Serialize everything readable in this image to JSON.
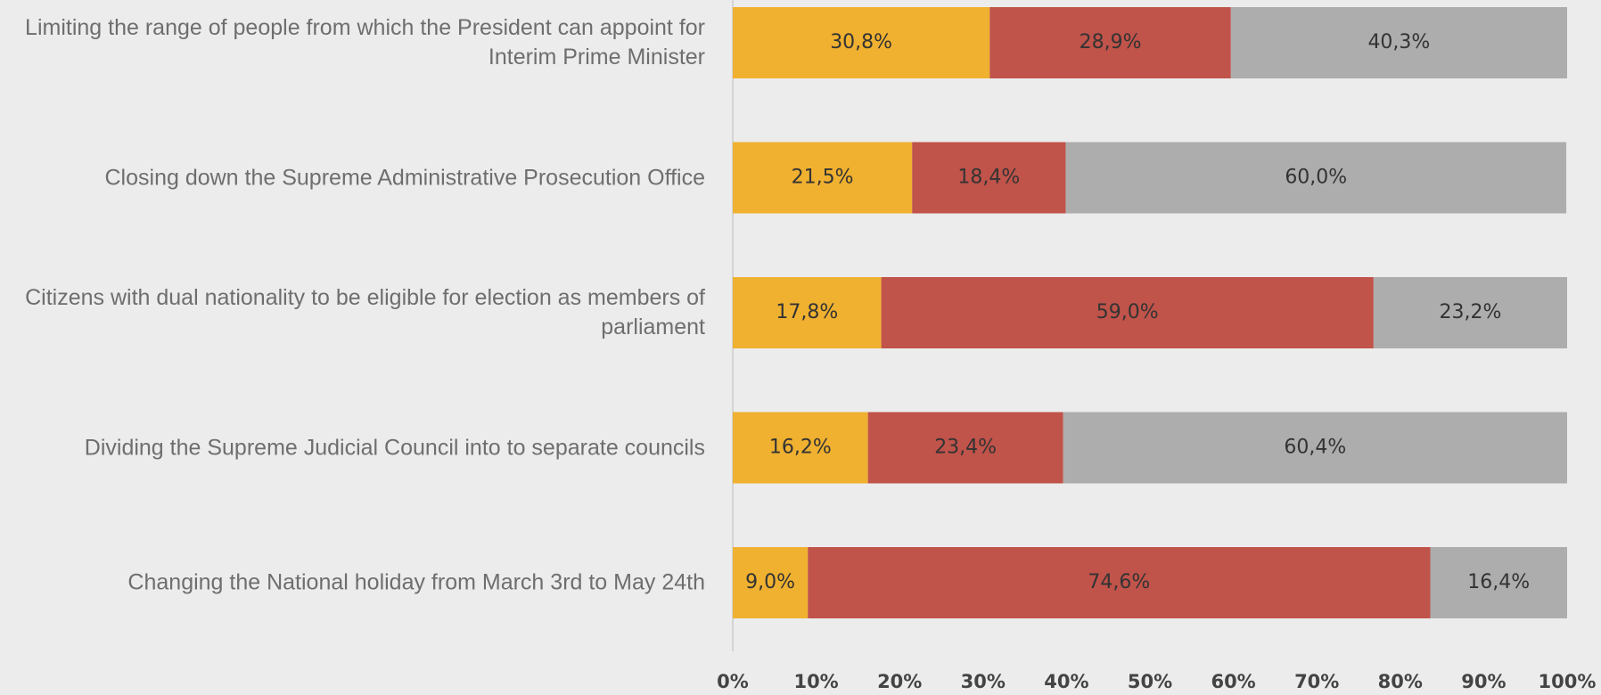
{
  "chart_data": {
    "type": "stacked_bar_horizontal",
    "categories": [
      "Limiting the range of people from which the President can appoint for Interim Prime Minister",
      "Closing down the Supreme Administrative Prosecution Office",
      "Citizens with dual nationality to be eligible for election as members of parliament",
      "Dividing the Supreme Judicial Council into to separate councils",
      "Changing the National holiday from March 3rd to May 24th"
    ],
    "series": [
      {
        "color": "#f0b130",
        "values": [
          30.8,
          21.5,
          17.8,
          16.2,
          9.0
        ],
        "value_labels": [
          "30,8%",
          "21,5%",
          "17,8%",
          "16,2%",
          "9,0%"
        ]
      },
      {
        "color": "#c0534a",
        "values": [
          28.9,
          18.4,
          59.0,
          23.4,
          74.6
        ],
        "value_labels": [
          "28,9%",
          "18,4%",
          "59,0%",
          "23,4%",
          "74,6%"
        ]
      },
      {
        "color": "#adadad",
        "values": [
          40.3,
          60.0,
          23.2,
          60.4,
          16.4
        ],
        "value_labels": [
          "40,3%",
          "60,0%",
          "23,2%",
          "60,4%",
          "16,4%"
        ]
      }
    ],
    "xlim": [
      0,
      100
    ],
    "xticks": [
      {
        "value": 0,
        "label": "0%"
      },
      {
        "value": 10,
        "label": "10%"
      },
      {
        "value": 20,
        "label": "20%"
      },
      {
        "value": 30,
        "label": "30%"
      },
      {
        "value": 40,
        "label": "40%"
      },
      {
        "value": 50,
        "label": "50%"
      },
      {
        "value": 60,
        "label": "60%"
      },
      {
        "value": 70,
        "label": "70%"
      },
      {
        "value": 80,
        "label": "80%"
      },
      {
        "value": 90,
        "label": "90%"
      },
      {
        "value": 100,
        "label": "100%"
      }
    ]
  }
}
